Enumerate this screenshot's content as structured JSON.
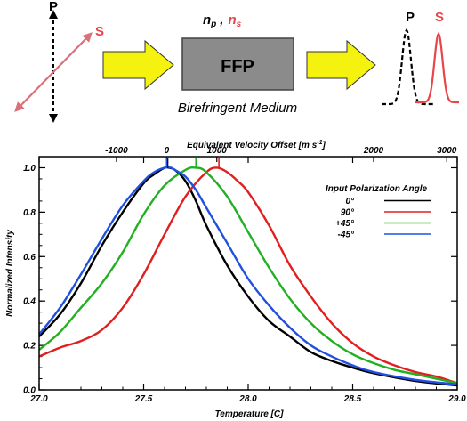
{
  "diagram": {
    "label_p": "P",
    "label_s": "S",
    "label_np": "n",
    "sub_p": "p",
    "comma": ",",
    "label_ns": "n",
    "sub_s": "s",
    "box_label": "FFP",
    "medium_label": "Birefringent Medium",
    "out_label_p": "P",
    "out_label_s": "S",
    "colors": {
      "s_red": "#e8454a",
      "s_pink": "#d9707a",
      "arrow_yellow": "#f4f20e",
      "box_gray": "#8b8b8b"
    }
  },
  "chart_data": {
    "type": "line",
    "xlabel": "Temperature [C]",
    "x2label": "Equivalent Velocity Offset [m s",
    "x2label_sup": "-1",
    "x2label_end": "]",
    "ylabel": "Normalized Intensity",
    "xlim": [
      27.0,
      29.0
    ],
    "ylim": [
      0.0,
      1.05
    ],
    "x_ticks": [
      "27.0",
      "27.5",
      "28.0",
      "28.5",
      "29.0"
    ],
    "x_tick_values": [
      27.0,
      27.5,
      28.0,
      28.5,
      29.0
    ],
    "y_ticks": [
      "0.0",
      "0.2",
      "0.4",
      "0.6",
      "0.8",
      "1.0"
    ],
    "y_tick_values": [
      0.0,
      0.2,
      0.4,
      0.6,
      0.8,
      1.0
    ],
    "x2_ticks": [
      "-1000",
      "0",
      "1000",
      "2000",
      "3000"
    ],
    "x2_tick_temps": [
      27.37,
      27.61,
      27.85,
      28.6,
      28.95
    ],
    "legend_title": "Input Polarization Angle",
    "legend_placement": "top-right",
    "series": [
      {
        "name": "0°",
        "color": "#000000",
        "peak": 27.615,
        "x": [
          27.0,
          27.1,
          27.2,
          27.3,
          27.4,
          27.5,
          27.55,
          27.6,
          27.62,
          27.65,
          27.7,
          27.75,
          27.8,
          27.9,
          28.0,
          28.1,
          28.2,
          28.3,
          28.4,
          28.5,
          28.6,
          28.8,
          29.0
        ],
        "y": [
          0.24,
          0.34,
          0.48,
          0.65,
          0.8,
          0.93,
          0.97,
          1.0,
          1.0,
          0.99,
          0.94,
          0.85,
          0.74,
          0.56,
          0.42,
          0.31,
          0.24,
          0.17,
          0.13,
          0.1,
          0.075,
          0.04,
          0.02
        ]
      },
      {
        "name": "90°",
        "color": "#e02020",
        "peak": 27.86,
        "x": [
          27.0,
          27.1,
          27.2,
          27.3,
          27.4,
          27.5,
          27.6,
          27.7,
          27.8,
          27.85,
          27.9,
          27.95,
          28.0,
          28.1,
          28.2,
          28.3,
          28.4,
          28.5,
          28.6,
          28.7,
          28.8,
          28.9,
          29.0
        ],
        "y": [
          0.15,
          0.19,
          0.22,
          0.27,
          0.37,
          0.52,
          0.7,
          0.87,
          0.98,
          1.0,
          0.98,
          0.94,
          0.89,
          0.74,
          0.56,
          0.42,
          0.3,
          0.21,
          0.15,
          0.11,
          0.08,
          0.06,
          0.03
        ]
      },
      {
        "name": "+45°",
        "color": "#22b022",
        "peak": 27.75,
        "x": [
          27.0,
          27.1,
          27.2,
          27.3,
          27.4,
          27.5,
          27.6,
          27.7,
          27.75,
          27.8,
          27.9,
          28.0,
          28.1,
          28.2,
          28.3,
          28.4,
          28.5,
          28.6,
          28.7,
          28.8,
          28.9,
          29.0
        ],
        "y": [
          0.18,
          0.26,
          0.37,
          0.48,
          0.62,
          0.79,
          0.92,
          0.99,
          1.0,
          0.98,
          0.87,
          0.71,
          0.55,
          0.41,
          0.3,
          0.22,
          0.16,
          0.12,
          0.09,
          0.07,
          0.05,
          0.03
        ]
      },
      {
        "name": "-45°",
        "color": "#2050e0",
        "peak": 27.61,
        "x": [
          27.0,
          27.1,
          27.2,
          27.3,
          27.4,
          27.5,
          27.55,
          27.6,
          27.63,
          27.65,
          27.7,
          27.75,
          27.8,
          27.9,
          28.0,
          28.1,
          28.2,
          28.3,
          28.4,
          28.5,
          28.6,
          28.8,
          29.0
        ],
        "y": [
          0.25,
          0.37,
          0.52,
          0.68,
          0.83,
          0.94,
          0.98,
          1.0,
          1.0,
          0.99,
          0.96,
          0.9,
          0.82,
          0.66,
          0.5,
          0.38,
          0.28,
          0.2,
          0.15,
          0.11,
          0.08,
          0.045,
          0.025
        ]
      }
    ]
  }
}
